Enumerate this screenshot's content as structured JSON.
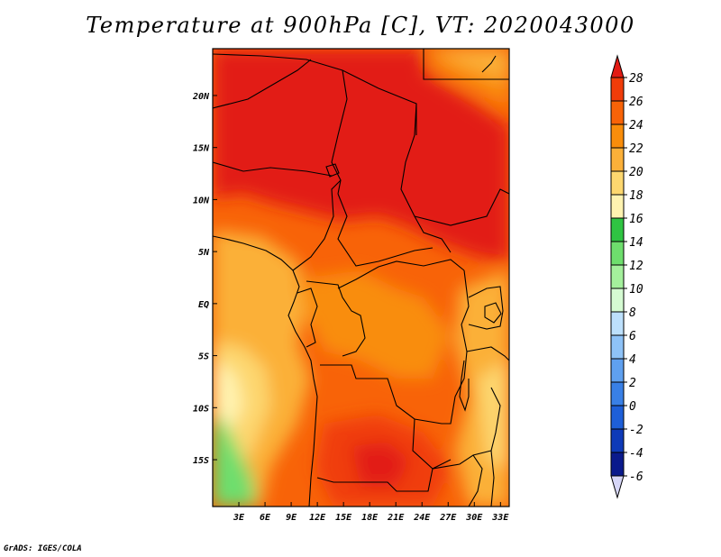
{
  "title": "Temperature at 900hPa [C], VT: 2020043000",
  "credit": "GrADS: IGES/COLA",
  "map": {
    "lon_range": [
      0,
      34
    ],
    "lat_range": [
      -19.5,
      24.5
    ],
    "x_ticks": [
      "3E",
      "6E",
      "9E",
      "12E",
      "15E",
      "18E",
      "21E",
      "24E",
      "27E",
      "30E",
      "33E"
    ],
    "x_tick_values": [
      3,
      6,
      9,
      12,
      15,
      18,
      21,
      24,
      27,
      30,
      33
    ],
    "y_ticks": [
      "20N",
      "15N",
      "10N",
      "5N",
      "EQ",
      "5S",
      "10S",
      "15S"
    ],
    "y_tick_values": [
      20,
      15,
      10,
      5,
      0,
      -5,
      -10,
      -15
    ]
  },
  "colorbar": {
    "labels": [
      "28",
      "26",
      "24",
      "22",
      "20",
      "18",
      "16",
      "14",
      "12",
      "10",
      "8",
      "6",
      "4",
      "2",
      "0",
      "-2",
      "-4",
      "-6"
    ],
    "colors": [
      "#e21b14",
      "#f03c0a",
      "#f86308",
      "#f98d0b",
      "#fbb039",
      "#fdd76f",
      "#fff3b0",
      "#2fc442",
      "#6ede6d",
      "#a4f09c",
      "#d5fbd2",
      "#bde0fc",
      "#8ec2f7",
      "#5fa0ef",
      "#3980e6",
      "#1e5fd8",
      "#0e3ab8",
      "#0a1a8c",
      "#d6d6f7"
    ]
  }
}
